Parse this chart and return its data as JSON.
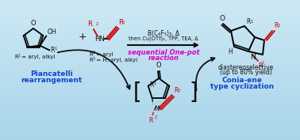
{
  "bg_color_top": "#cde8f4",
  "bg_color_bottom": "#a8d4ea",
  "red_color": "#cc0000",
  "blue_color": "#1144cc",
  "magenta_color": "#dd00cc",
  "black_color": "#111111",
  "reaction_conditions_line1": "B(C₆F₅)₃, Δ",
  "reaction_conditions_line2": "then Cu(OTf)₂, TPP, TEA, Δ",
  "sequential_text": "sequential One-pot",
  "reaction_text": "reaction",
  "diast_text": "diastereoselective",
  "yield_text": "(up to 80% yield)",
  "piancatelli_text": "Piancatelli",
  "rearrangement_text": "rearrangement",
  "conia_line1": "Conia-ene",
  "conia_line2": "type cyclization"
}
